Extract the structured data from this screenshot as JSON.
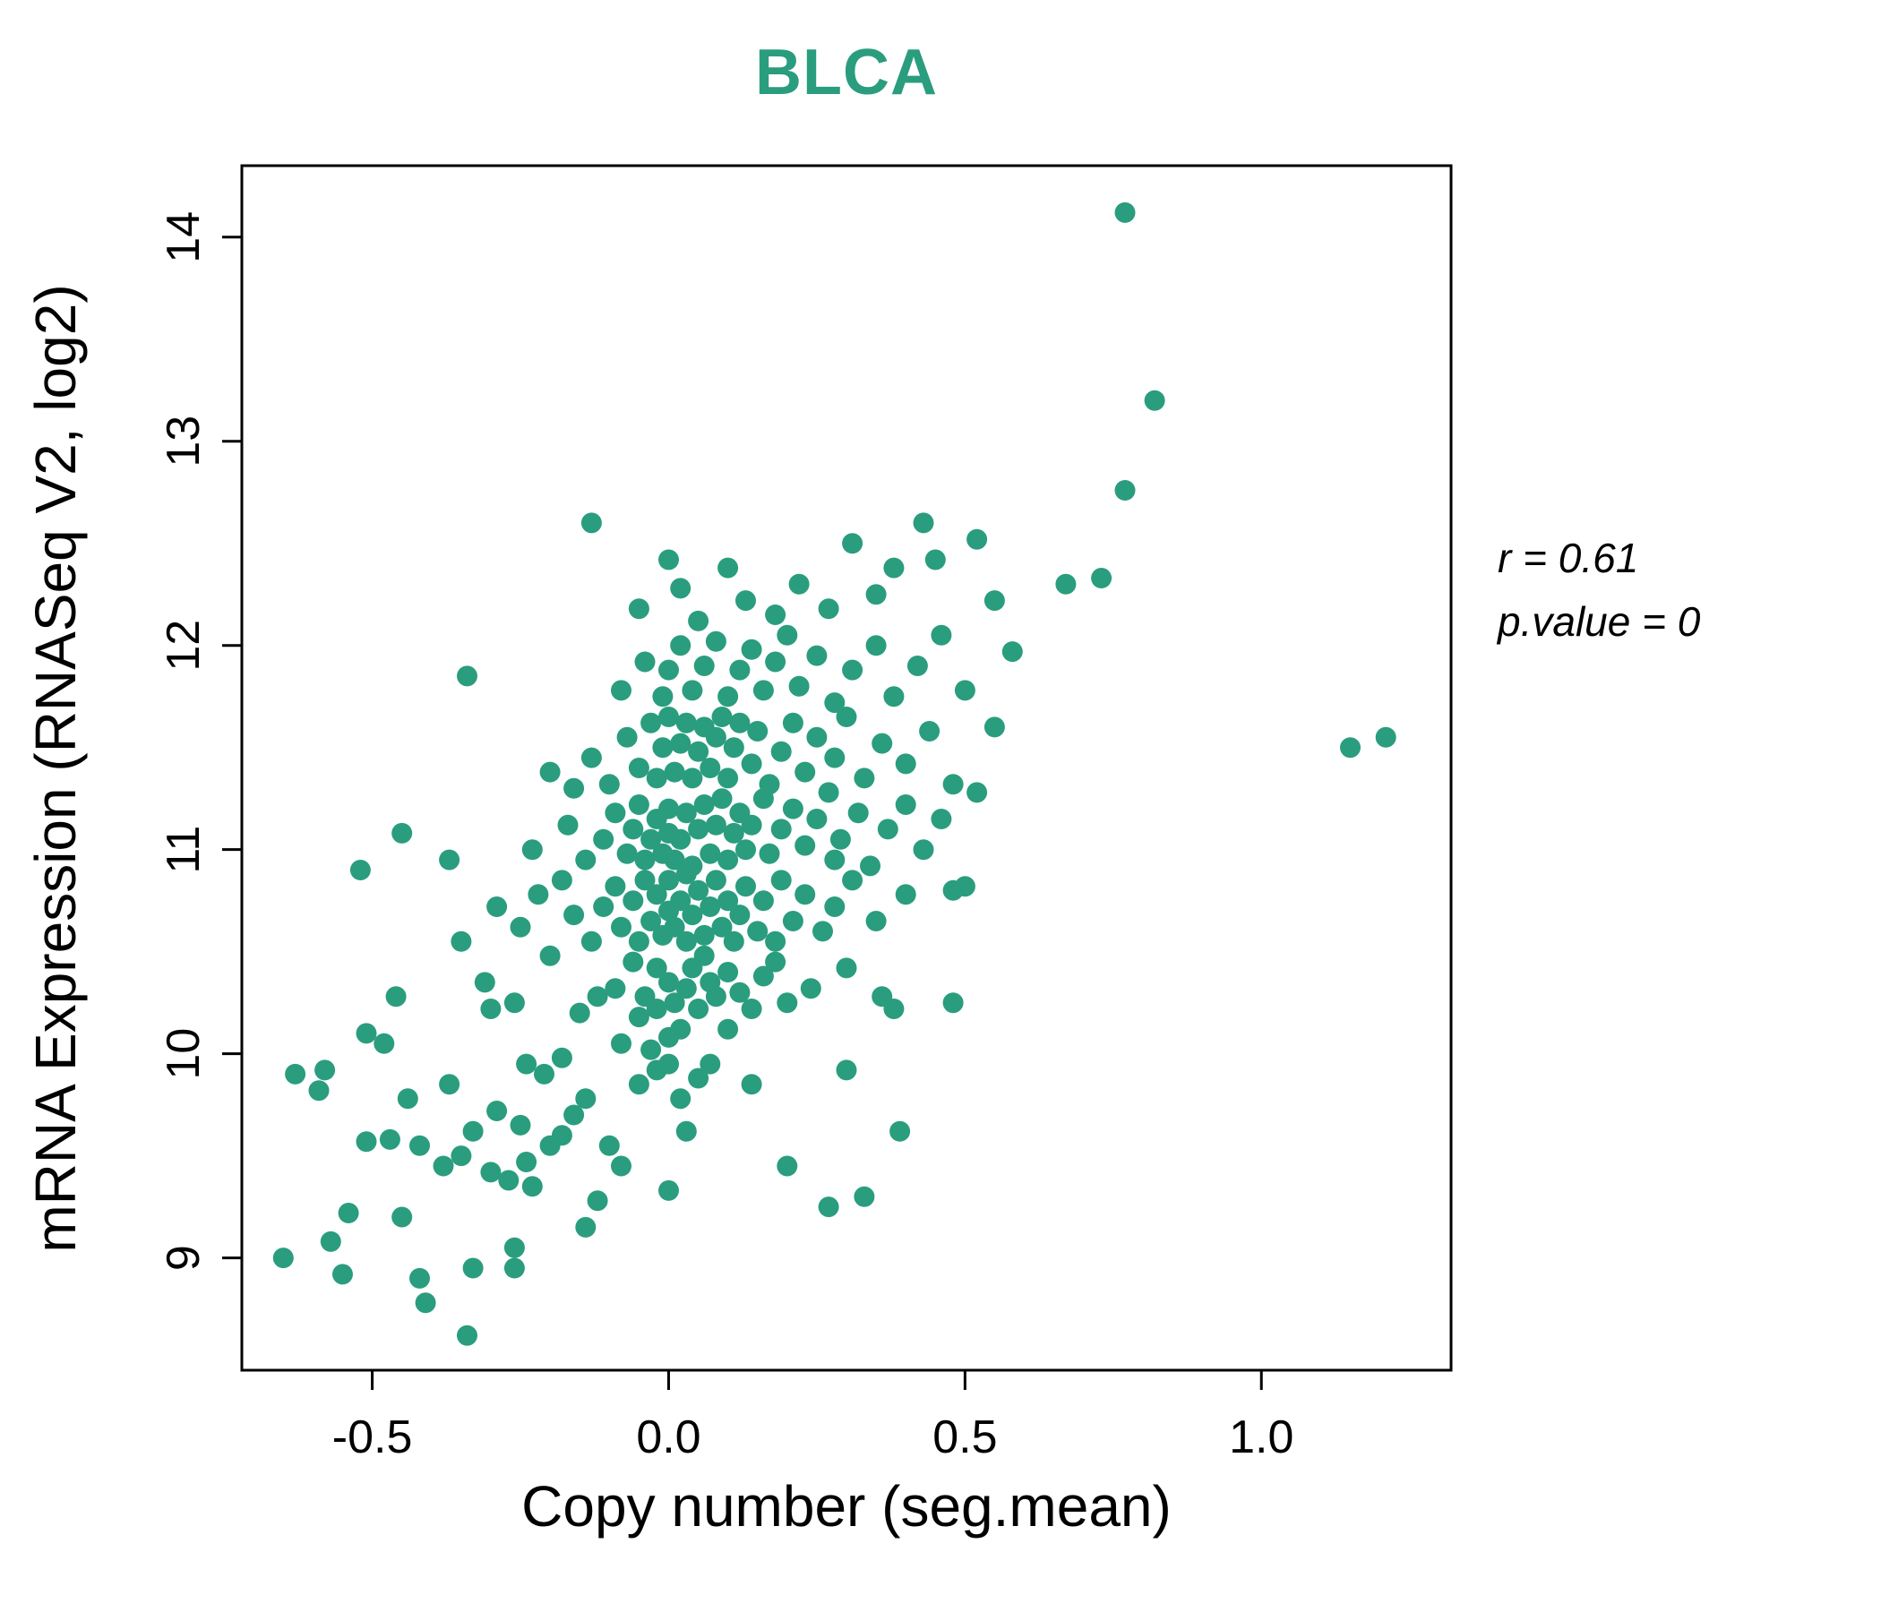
{
  "chart_data": {
    "type": "scatter",
    "title": "BLCA",
    "xlabel": "Copy number (seg.mean)",
    "ylabel": "mRNA Expression (RNASeq V2, log2)",
    "annotation": {
      "line1": "r = 0.61",
      "line2": "p.value = 0"
    },
    "legend": "none",
    "grid": false,
    "title_color": "#2a9d7e",
    "point_color": "#2a9d7e",
    "axis_color": "#000000",
    "xlim": [
      -0.72,
      1.32
    ],
    "ylim": [
      8.45,
      14.35
    ],
    "xticks": {
      "values": [
        -0.5,
        0.0,
        0.5,
        1.0
      ],
      "labels": [
        "-0.5",
        "0.0",
        "0.5",
        "1.0"
      ]
    },
    "yticks": {
      "values": [
        9,
        10,
        11,
        12,
        13,
        14
      ],
      "labels": [
        "9",
        "10",
        "11",
        "12",
        "13",
        "14"
      ]
    },
    "points": [
      [
        0.77,
        14.12
      ],
      [
        0.82,
        13.2
      ],
      [
        0.77,
        12.76
      ],
      [
        1.15,
        11.5
      ],
      [
        1.21,
        11.55
      ],
      [
        -0.13,
        12.6
      ],
      [
        -0.05,
        12.18
      ],
      [
        0.0,
        12.42
      ],
      [
        0.02,
        12.28
      ],
      [
        0.05,
        12.12
      ],
      [
        0.1,
        12.38
      ],
      [
        0.13,
        12.22
      ],
      [
        0.18,
        12.15
      ],
      [
        0.22,
        12.3
      ],
      [
        0.27,
        12.18
      ],
      [
        0.31,
        12.5
      ],
      [
        0.35,
        12.25
      ],
      [
        0.38,
        12.38
      ],
      [
        0.43,
        12.6
      ],
      [
        0.45,
        12.42
      ],
      [
        0.52,
        12.52
      ],
      [
        0.55,
        12.22
      ],
      [
        0.67,
        12.3
      ],
      [
        0.73,
        12.33
      ],
      [
        -0.34,
        11.85
      ],
      [
        -0.08,
        11.78
      ],
      [
        -0.04,
        11.92
      ],
      [
        -0.01,
        11.75
      ],
      [
        0.0,
        11.88
      ],
      [
        0.02,
        12.0
      ],
      [
        0.04,
        11.78
      ],
      [
        0.06,
        11.9
      ],
      [
        0.08,
        12.02
      ],
      [
        0.1,
        11.75
      ],
      [
        0.12,
        11.88
      ],
      [
        0.14,
        11.98
      ],
      [
        0.16,
        11.78
      ],
      [
        0.18,
        11.92
      ],
      [
        0.2,
        12.05
      ],
      [
        0.22,
        11.8
      ],
      [
        0.25,
        11.95
      ],
      [
        0.28,
        11.72
      ],
      [
        0.31,
        11.88
      ],
      [
        0.35,
        12.0
      ],
      [
        0.38,
        11.75
      ],
      [
        0.42,
        11.9
      ],
      [
        0.46,
        12.05
      ],
      [
        0.5,
        11.78
      ],
      [
        0.58,
        11.97
      ],
      [
        -0.2,
        11.38
      ],
      [
        -0.16,
        11.3
      ],
      [
        -0.13,
        11.45
      ],
      [
        -0.1,
        11.32
      ],
      [
        -0.07,
        11.55
      ],
      [
        -0.05,
        11.4
      ],
      [
        -0.03,
        11.62
      ],
      [
        -0.02,
        11.35
      ],
      [
        -0.01,
        11.5
      ],
      [
        0.0,
        11.65
      ],
      [
        0.01,
        11.38
      ],
      [
        0.02,
        11.52
      ],
      [
        0.03,
        11.62
      ],
      [
        0.04,
        11.35
      ],
      [
        0.05,
        11.48
      ],
      [
        0.06,
        11.6
      ],
      [
        0.07,
        11.4
      ],
      [
        0.08,
        11.55
      ],
      [
        0.09,
        11.65
      ],
      [
        0.1,
        11.35
      ],
      [
        0.11,
        11.5
      ],
      [
        0.12,
        11.62
      ],
      [
        0.14,
        11.42
      ],
      [
        0.15,
        11.58
      ],
      [
        0.17,
        11.32
      ],
      [
        0.19,
        11.48
      ],
      [
        0.21,
        11.62
      ],
      [
        0.23,
        11.38
      ],
      [
        0.25,
        11.55
      ],
      [
        0.28,
        11.45
      ],
      [
        0.3,
        11.65
      ],
      [
        0.33,
        11.35
      ],
      [
        0.36,
        11.52
      ],
      [
        0.4,
        11.42
      ],
      [
        0.44,
        11.58
      ],
      [
        0.48,
        11.32
      ],
      [
        0.55,
        11.6
      ],
      [
        -0.45,
        11.08
      ],
      [
        -0.37,
        10.95
      ],
      [
        -0.23,
        11.0
      ],
      [
        -0.17,
        11.12
      ],
      [
        -0.14,
        10.95
      ],
      [
        -0.11,
        11.05
      ],
      [
        -0.09,
        11.18
      ],
      [
        -0.07,
        10.98
      ],
      [
        -0.06,
        11.1
      ],
      [
        -0.05,
        11.22
      ],
      [
        -0.04,
        10.95
      ],
      [
        -0.03,
        11.05
      ],
      [
        -0.02,
        11.15
      ],
      [
        -0.01,
        10.98
      ],
      [
        0.0,
        11.08
      ],
      [
        0.0,
        11.2
      ],
      [
        0.01,
        10.95
      ],
      [
        0.02,
        11.05
      ],
      [
        0.03,
        11.18
      ],
      [
        0.04,
        10.92
      ],
      [
        0.05,
        11.1
      ],
      [
        0.06,
        11.22
      ],
      [
        0.07,
        10.98
      ],
      [
        0.08,
        11.12
      ],
      [
        0.09,
        11.25
      ],
      [
        0.1,
        10.95
      ],
      [
        0.11,
        11.08
      ],
      [
        0.12,
        11.18
      ],
      [
        0.13,
        11.0
      ],
      [
        0.14,
        11.12
      ],
      [
        0.16,
        11.25
      ],
      [
        0.17,
        10.98
      ],
      [
        0.19,
        11.1
      ],
      [
        0.21,
        11.2
      ],
      [
        0.23,
        11.02
      ],
      [
        0.25,
        11.15
      ],
      [
        0.27,
        11.28
      ],
      [
        0.29,
        11.05
      ],
      [
        0.32,
        11.18
      ],
      [
        0.34,
        10.92
      ],
      [
        0.37,
        11.1
      ],
      [
        0.4,
        11.22
      ],
      [
        0.43,
        11.0
      ],
      [
        0.46,
        11.15
      ],
      [
        0.52,
        11.28
      ],
      [
        0.28,
        10.95
      ],
      [
        -0.52,
        10.9
      ],
      [
        -0.35,
        10.55
      ],
      [
        -0.29,
        10.72
      ],
      [
        -0.25,
        10.62
      ],
      [
        -0.22,
        10.78
      ],
      [
        -0.18,
        10.85
      ],
      [
        -0.16,
        10.68
      ],
      [
        -0.13,
        10.55
      ],
      [
        -0.11,
        10.72
      ],
      [
        -0.09,
        10.82
      ],
      [
        -0.08,
        10.62
      ],
      [
        -0.06,
        10.75
      ],
      [
        -0.05,
        10.55
      ],
      [
        -0.04,
        10.85
      ],
      [
        -0.03,
        10.65
      ],
      [
        -0.02,
        10.78
      ],
      [
        -0.01,
        10.58
      ],
      [
        0.0,
        10.7
      ],
      [
        0.0,
        10.85
      ],
      [
        0.01,
        10.62
      ],
      [
        0.02,
        10.75
      ],
      [
        0.03,
        10.55
      ],
      [
        0.03,
        10.88
      ],
      [
        0.04,
        10.68
      ],
      [
        0.05,
        10.8
      ],
      [
        0.06,
        10.58
      ],
      [
        0.07,
        10.72
      ],
      [
        0.08,
        10.85
      ],
      [
        0.09,
        10.62
      ],
      [
        0.1,
        10.75
      ],
      [
        0.11,
        10.55
      ],
      [
        0.12,
        10.68
      ],
      [
        0.13,
        10.82
      ],
      [
        0.15,
        10.6
      ],
      [
        0.16,
        10.75
      ],
      [
        0.18,
        10.55
      ],
      [
        0.19,
        10.85
      ],
      [
        0.21,
        10.65
      ],
      [
        0.23,
        10.78
      ],
      [
        0.26,
        10.6
      ],
      [
        0.28,
        10.72
      ],
      [
        0.31,
        10.85
      ],
      [
        0.35,
        10.65
      ],
      [
        0.4,
        10.78
      ],
      [
        0.48,
        10.8
      ],
      [
        0.5,
        10.82
      ],
      [
        -0.46,
        10.28
      ],
      [
        -0.31,
        10.35
      ],
      [
        -0.3,
        10.22
      ],
      [
        -0.26,
        10.25
      ],
      [
        -0.2,
        10.48
      ],
      [
        -0.15,
        10.2
      ],
      [
        -0.12,
        10.28
      ],
      [
        -0.09,
        10.32
      ],
      [
        -0.06,
        10.45
      ],
      [
        -0.05,
        10.18
      ],
      [
        -0.04,
        10.28
      ],
      [
        -0.02,
        10.22
      ],
      [
        -0.02,
        10.42
      ],
      [
        0.0,
        10.35
      ],
      [
        0.01,
        10.25
      ],
      [
        0.02,
        10.12
      ],
      [
        0.03,
        10.32
      ],
      [
        0.04,
        10.42
      ],
      [
        0.05,
        10.22
      ],
      [
        0.06,
        10.48
      ],
      [
        0.07,
        10.35
      ],
      [
        0.08,
        10.28
      ],
      [
        0.1,
        10.4
      ],
      [
        0.1,
        10.12
      ],
      [
        0.12,
        10.3
      ],
      [
        0.14,
        10.22
      ],
      [
        0.16,
        10.38
      ],
      [
        0.18,
        10.45
      ],
      [
        0.2,
        10.25
      ],
      [
        0.24,
        10.32
      ],
      [
        0.3,
        10.42
      ],
      [
        0.36,
        10.28
      ],
      [
        0.38,
        10.22
      ],
      [
        0.48,
        10.25
      ],
      [
        -0.63,
        9.9
      ],
      [
        -0.59,
        9.82
      ],
      [
        -0.58,
        9.92
      ],
      [
        -0.51,
        10.1
      ],
      [
        -0.48,
        10.05
      ],
      [
        -0.44,
        9.78
      ],
      [
        -0.37,
        9.85
      ],
      [
        -0.24,
        9.95
      ],
      [
        -0.21,
        9.9
      ],
      [
        -0.18,
        9.98
      ],
      [
        -0.14,
        9.78
      ],
      [
        -0.08,
        10.05
      ],
      [
        -0.05,
        9.85
      ],
      [
        -0.03,
        10.02
      ],
      [
        -0.02,
        9.92
      ],
      [
        0.0,
        9.95
      ],
      [
        0.0,
        10.08
      ],
      [
        0.02,
        9.78
      ],
      [
        0.05,
        9.88
      ],
      [
        0.07,
        9.95
      ],
      [
        0.14,
        9.85
      ],
      [
        0.3,
        9.92
      ],
      [
        -0.51,
        9.57
      ],
      [
        -0.47,
        9.58
      ],
      [
        -0.42,
        9.55
      ],
      [
        -0.38,
        9.45
      ],
      [
        -0.35,
        9.5
      ],
      [
        -0.33,
        9.62
      ],
      [
        -0.3,
        9.42
      ],
      [
        -0.29,
        9.72
      ],
      [
        -0.27,
        9.38
      ],
      [
        -0.25,
        9.65
      ],
      [
        -0.24,
        9.47
      ],
      [
        -0.2,
        9.55
      ],
      [
        -0.18,
        9.6
      ],
      [
        -0.16,
        9.7
      ],
      [
        -0.1,
        9.55
      ],
      [
        -0.08,
        9.45
      ],
      [
        0.03,
        9.62
      ],
      [
        0.2,
        9.45
      ],
      [
        0.27,
        9.25
      ],
      [
        0.33,
        9.3
      ],
      [
        0.39,
        9.62
      ],
      [
        -0.34,
        8.62
      ],
      [
        -0.41,
        8.78
      ],
      [
        -0.55,
        8.92
      ],
      [
        -0.42,
        8.9
      ],
      [
        -0.33,
        8.95
      ],
      [
        -0.26,
        8.95
      ],
      [
        -0.26,
        9.05
      ],
      [
        -0.65,
        9.0
      ],
      [
        -0.57,
        9.08
      ],
      [
        -0.45,
        9.2
      ],
      [
        -0.54,
        9.22
      ],
      [
        -0.14,
        9.15
      ],
      [
        -0.12,
        9.28
      ],
      [
        0.0,
        9.33
      ],
      [
        -0.23,
        9.35
      ]
    ]
  }
}
